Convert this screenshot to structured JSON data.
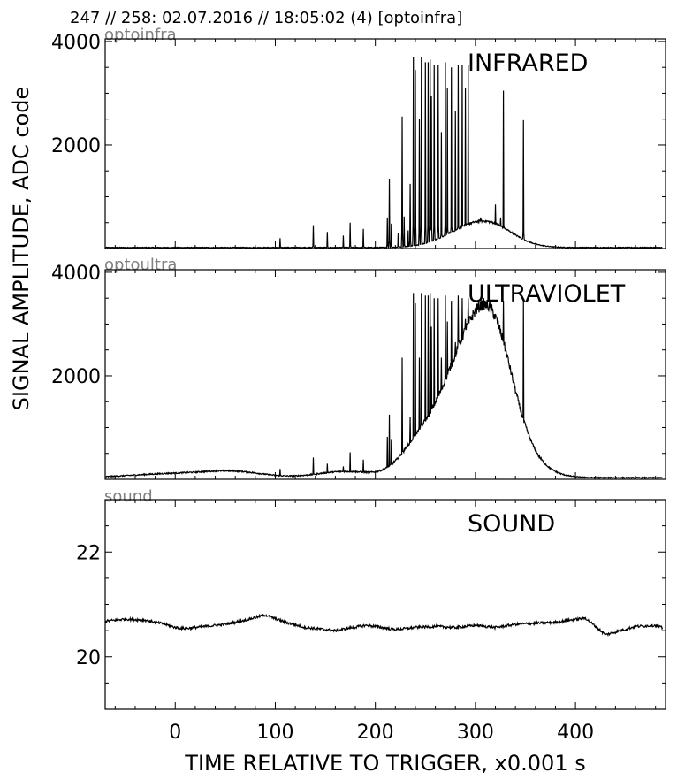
{
  "header": "247 // 258:   02.07.2016 // 18:05:02 (4)  [optoinfra]",
  "ylabel": "SIGNAL AMPLITUDE,  ADC code",
  "xlabel": "TIME RELATIVE TO TRIGGER,   x0.001 s",
  "chart_data": [
    {
      "type": "line",
      "tag": "optoinfra",
      "title": "INFRARED",
      "xlim": [
        -70,
        490
      ],
      "ylim": [
        0,
        4050
      ],
      "x_ticks": [
        0,
        100,
        200,
        300,
        400
      ],
      "y_ticks": [
        2000,
        4000
      ],
      "x_tick_labels": [
        "0",
        "100",
        "200",
        "300",
        "400"
      ],
      "y_tick_labels": [
        "2000",
        "4000"
      ],
      "color": "#000000",
      "baseline": 20,
      "bumps": [
        [
          300,
          40,
          400
        ],
        [
          320,
          30,
          150
        ]
      ],
      "spikes": [
        [
          105,
          200
        ],
        [
          138,
          450
        ],
        [
          152,
          320
        ],
        [
          168,
          250
        ],
        [
          175,
          500
        ],
        [
          188,
          380
        ],
        [
          212,
          600
        ],
        [
          214,
          1350
        ],
        [
          216,
          480
        ],
        [
          223,
          300
        ],
        [
          227,
          2550
        ],
        [
          229,
          620
        ],
        [
          233,
          350
        ],
        [
          235,
          1250
        ],
        [
          238,
          3700
        ],
        [
          240,
          3450
        ],
        [
          244,
          2500
        ],
        [
          246,
          3700
        ],
        [
          250,
          3600
        ],
        [
          253,
          3600
        ],
        [
          255,
          3650
        ],
        [
          256,
          2950
        ],
        [
          259,
          3550
        ],
        [
          263,
          3550
        ],
        [
          266,
          2250
        ],
        [
          270,
          3600
        ],
        [
          272,
          3100
        ],
        [
          276,
          3500
        ],
        [
          280,
          2650
        ],
        [
          283,
          3550
        ],
        [
          287,
          3550
        ],
        [
          290,
          3100
        ],
        [
          293,
          3550
        ],
        [
          305,
          600
        ],
        [
          320,
          850
        ],
        [
          325,
          600
        ],
        [
          328,
          3050
        ],
        [
          348,
          2480
        ]
      ]
    },
    {
      "type": "line",
      "tag": "optoultra",
      "title": "ULTRAVIOLET",
      "xlim": [
        -70,
        490
      ],
      "ylim": [
        0,
        4050
      ],
      "x_ticks": [
        0,
        100,
        200,
        300,
        400
      ],
      "y_ticks": [
        2000,
        4000
      ],
      "x_tick_labels": [
        "0",
        "100",
        "200",
        "300",
        "400"
      ],
      "y_tick_labels": [
        "2000",
        "4000"
      ],
      "color": "#000000",
      "baseline": 30,
      "bumps": [
        [
          0,
          60,
          80
        ],
        [
          60,
          40,
          100
        ],
        [
          170,
          40,
          120
        ],
        [
          300,
          45,
          2800
        ],
        [
          320,
          25,
          800
        ],
        [
          240,
          25,
          350
        ]
      ],
      "spikes": [
        [
          105,
          200
        ],
        [
          138,
          420
        ],
        [
          152,
          300
        ],
        [
          168,
          250
        ],
        [
          175,
          520
        ],
        [
          188,
          380
        ],
        [
          212,
          820
        ],
        [
          214,
          1250
        ],
        [
          216,
          780
        ],
        [
          223,
          350
        ],
        [
          227,
          2350
        ],
        [
          229,
          580
        ],
        [
          233,
          350
        ],
        [
          235,
          1200
        ],
        [
          238,
          3600
        ],
        [
          240,
          3400
        ],
        [
          244,
          2350
        ],
        [
          246,
          3600
        ],
        [
          250,
          3550
        ],
        [
          253,
          3550
        ],
        [
          255,
          3600
        ],
        [
          256,
          2950
        ],
        [
          259,
          3500
        ],
        [
          263,
          3500
        ],
        [
          266,
          2350
        ],
        [
          270,
          3550
        ],
        [
          272,
          3050
        ],
        [
          276,
          3450
        ],
        [
          280,
          2650
        ],
        [
          283,
          3550
        ],
        [
          287,
          3500
        ],
        [
          290,
          3100
        ],
        [
          293,
          3500
        ],
        [
          328,
          3450
        ],
        [
          348,
          3450
        ]
      ]
    },
    {
      "type": "line",
      "tag": "sound",
      "title": "SOUND",
      "xlim": [
        -70,
        490
      ],
      "ylim": [
        19,
        23
      ],
      "x_ticks": [
        0,
        100,
        200,
        300,
        400
      ],
      "y_ticks": [
        20,
        22
      ],
      "x_tick_labels": [
        "0",
        "100",
        "200",
        "300",
        "400"
      ],
      "y_tick_labels": [
        "20",
        "22"
      ],
      "color": "#000000",
      "x": [
        -70,
        -50,
        -30,
        -10,
        0,
        10,
        30,
        50,
        70,
        90,
        110,
        130,
        150,
        160,
        175,
        190,
        200,
        220,
        240,
        260,
        280,
        300,
        320,
        340,
        360,
        380,
        395,
        410,
        420,
        430,
        445,
        460,
        480,
        487
      ],
      "y": [
        20.68,
        20.72,
        20.7,
        20.62,
        20.56,
        20.54,
        20.58,
        20.62,
        20.7,
        20.8,
        20.66,
        20.56,
        20.52,
        20.5,
        20.55,
        20.6,
        20.58,
        20.52,
        20.56,
        20.58,
        20.56,
        20.6,
        20.56,
        20.62,
        20.64,
        20.66,
        20.7,
        20.74,
        20.58,
        20.42,
        20.5,
        20.58,
        20.6,
        20.55
      ]
    }
  ]
}
